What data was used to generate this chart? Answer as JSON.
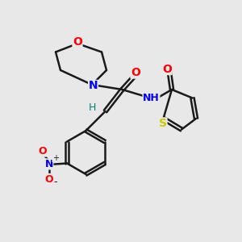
{
  "bg_color": "#e8e8e8",
  "bond_color": "#1a1a1a",
  "N_color": "#0000ff",
  "O_color": "#ff0000",
  "S_color": "#cccc00",
  "H_color": "#008080",
  "figsize": [
    3.0,
    3.0
  ],
  "dpi": 100,
  "xlim": [
    0,
    10
  ],
  "ylim": [
    0,
    10
  ]
}
